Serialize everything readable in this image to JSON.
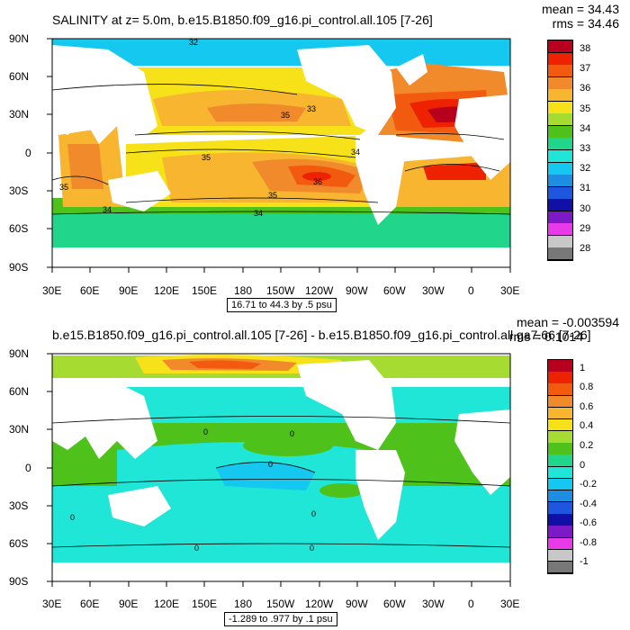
{
  "panels": [
    {
      "title": "SALINITY at z=   5.0m, b.e15.B1850.f09_g16.pi_control.all.105 [7-26]",
      "mean": "mean = 34.43",
      "rms": "rms = 34.46",
      "range": "16.71 to 44.3 by .5 psu",
      "lat_labels": [
        "90N",
        "60N",
        "30N",
        "0",
        "30S",
        "60S",
        "90S"
      ],
      "lon_labels": [
        "30E",
        "60E",
        "90E",
        "120E",
        "150E",
        "180",
        "150W",
        "120W",
        "90W",
        "60W",
        "30W",
        "0",
        "30E"
      ],
      "legend_labels": [
        "38",
        "37",
        "36",
        "35",
        "34",
        "33",
        "32",
        "31",
        "30",
        "29",
        "28"
      ],
      "legend_colors": [
        "#b8001e",
        "#ee2200",
        "#f25a10",
        "#f18a2b",
        "#f7b530",
        "#f7e21a",
        "#a6dc32",
        "#4ec21a",
        "#21d58a",
        "#1fe6d6",
        "#14c8ef",
        "#1e8ee3",
        "#1f56df",
        "#1010a6",
        "#7d1ac8",
        "#e83ae8",
        "#c8c8c8",
        "#787878"
      ],
      "contour_labels": [
        "32",
        "35",
        "35",
        "36",
        "35",
        "34",
        "34",
        "35",
        "34",
        "33"
      ]
    },
    {
      "title": "b.e15.B1850.f09_g16.pi_control.all.105 [7-26] - b.e15.B1850.f09_g16.pi_control.all.ga7.66 [7-26]",
      "mean": "mean = -0.003594",
      "rms": "rms = 0.1014",
      "range": "-1.289 to .977 by .1 psu",
      "lat_labels": [
        "90N",
        "60N",
        "30N",
        "0",
        "30S",
        "60S",
        "90S"
      ],
      "lon_labels": [
        "30E",
        "60E",
        "90E",
        "120E",
        "150E",
        "180",
        "150W",
        "120W",
        "90W",
        "60W",
        "30W",
        "0",
        "30E"
      ],
      "legend_labels": [
        "1",
        "0.8",
        "0.6",
        "0.4",
        "0.2",
        "0",
        "-0.2",
        "-0.4",
        "-0.6",
        "-0.8",
        "-1"
      ],
      "legend_colors": [
        "#b8001e",
        "#ee2200",
        "#f25a10",
        "#f18a2b",
        "#f7b530",
        "#f7e21a",
        "#a6dc32",
        "#4ec21a",
        "#21d58a",
        "#1fe6d6",
        "#14c8ef",
        "#1e8ee3",
        "#1f56df",
        "#1010a6",
        "#7d1ac8",
        "#e83ae8",
        "#c8c8c8",
        "#787878"
      ],
      "contour_labels": [
        "0",
        "0",
        "0",
        "0",
        "0",
        "0",
        "0"
      ]
    }
  ],
  "colors": {
    "land": "#ffffff",
    "frame": "#000000"
  }
}
